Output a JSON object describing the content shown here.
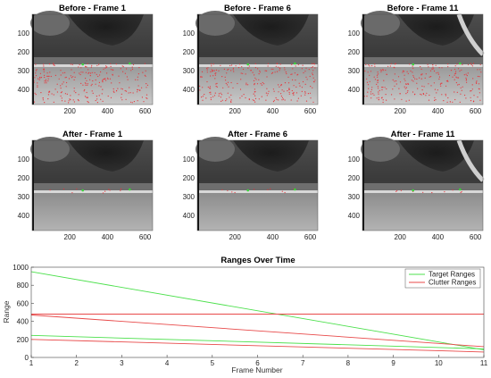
{
  "image_panels": {
    "x_ticks": [
      "200",
      "400",
      "600"
    ],
    "y_ticks": [
      "100",
      "200",
      "300",
      "400"
    ],
    "rows": [
      {
        "name": "before",
        "tracks": "dense",
        "titles": [
          "Before - Frame 1",
          "Before - Frame 6",
          "Before - Frame 11"
        ]
      },
      {
        "name": "after",
        "tracks": "sparse",
        "titles": [
          "After - Frame 1",
          "After - Frame 6",
          "After - Frame 11"
        ]
      }
    ],
    "colors": {
      "track_points": "#e8343a",
      "target_points": "#3ad43a"
    }
  },
  "chart_data": {
    "type": "line",
    "title": "Ranges Over Time",
    "xlabel": "Frame Number",
    "ylabel": "Range",
    "xlim": [
      1,
      11
    ],
    "ylim": [
      0,
      1000
    ],
    "xticks": [
      1,
      2,
      3,
      4,
      5,
      6,
      7,
      8,
      9,
      10,
      11
    ],
    "yticks": [
      0,
      200,
      400,
      600,
      800,
      1000
    ],
    "legend": {
      "placement": "top-right",
      "entries": [
        {
          "label": "Target Ranges",
          "color": "#4ce04c"
        },
        {
          "label": "Clutter Ranges",
          "color": "#e84a4a"
        }
      ]
    },
    "series": [
      {
        "group": "Target Ranges",
        "color": "#4ce04c",
        "points": [
          [
            1,
            950
          ],
          [
            11,
            85
          ]
        ]
      },
      {
        "group": "Target Ranges",
        "color": "#4ce04c",
        "points": [
          [
            1,
            245
          ],
          [
            11,
            95
          ]
        ]
      },
      {
        "group": "Clutter Ranges",
        "color": "#e84a4a",
        "points": [
          [
            1,
            480
          ],
          [
            11,
            480
          ]
        ]
      },
      {
        "group": "Clutter Ranges",
        "color": "#e84a4a",
        "points": [
          [
            1,
            470
          ],
          [
            11,
            120
          ]
        ]
      },
      {
        "group": "Clutter Ranges",
        "color": "#e84a4a",
        "points": [
          [
            1,
            200
          ],
          [
            11,
            60
          ]
        ]
      }
    ]
  }
}
